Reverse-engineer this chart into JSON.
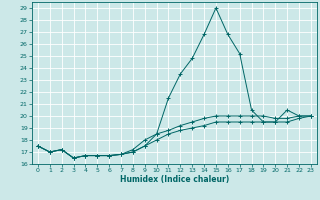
{
  "xlabel": "Humidex (Indice chaleur)",
  "background_color": "#cce8e8",
  "grid_color": "#ffffff",
  "line_color": "#006666",
  "xlim": [
    -0.5,
    23.5
  ],
  "ylim": [
    16,
    29.5
  ],
  "yticks": [
    16,
    17,
    18,
    19,
    20,
    21,
    22,
    23,
    24,
    25,
    26,
    27,
    28,
    29
  ],
  "xticks": [
    0,
    1,
    2,
    3,
    4,
    5,
    6,
    7,
    8,
    9,
    10,
    11,
    12,
    13,
    14,
    15,
    16,
    17,
    18,
    19,
    20,
    21,
    22,
    23
  ],
  "series": [
    {
      "x": [
        0,
        1,
        2,
        3,
        4,
        5,
        6,
        7,
        8,
        9,
        10,
        11,
        12,
        13,
        14,
        15,
        16,
        17,
        18,
        19,
        20,
        21,
        22,
        23
      ],
      "y": [
        17.5,
        17.0,
        17.2,
        16.5,
        16.7,
        16.7,
        16.7,
        16.8,
        17.0,
        17.5,
        18.5,
        21.5,
        23.5,
        24.8,
        26.8,
        29.0,
        26.8,
        25.2,
        20.5,
        19.5,
        19.5,
        20.5,
        20.0,
        20.0
      ]
    },
    {
      "x": [
        0,
        1,
        2,
        3,
        4,
        5,
        6,
        7,
        8,
        9,
        10,
        11,
        12,
        13,
        14,
        15,
        16,
        17,
        18,
        19,
        20,
        21,
        22,
        23
      ],
      "y": [
        17.5,
        17.0,
        17.2,
        16.5,
        16.7,
        16.7,
        16.7,
        16.8,
        17.2,
        18.0,
        18.5,
        18.8,
        19.2,
        19.5,
        19.8,
        20.0,
        20.0,
        20.0,
        20.0,
        20.0,
        19.8,
        19.8,
        20.0,
        20.0
      ]
    },
    {
      "x": [
        0,
        1,
        2,
        3,
        4,
        5,
        6,
        7,
        8,
        9,
        10,
        11,
        12,
        13,
        14,
        15,
        16,
        17,
        18,
        19,
        20,
        21,
        22,
        23
      ],
      "y": [
        17.5,
        17.0,
        17.2,
        16.5,
        16.7,
        16.7,
        16.7,
        16.8,
        17.0,
        17.5,
        18.0,
        18.5,
        18.8,
        19.0,
        19.2,
        19.5,
        19.5,
        19.5,
        19.5,
        19.5,
        19.5,
        19.5,
        19.8,
        20.0
      ]
    }
  ]
}
